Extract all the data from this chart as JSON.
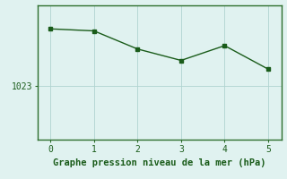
{
  "x": [
    0,
    1,
    2,
    3,
    4,
    5
  ],
  "y": [
    1031.5,
    1031.2,
    1028.5,
    1026.8,
    1029.0,
    1025.5
  ],
  "line_color": "#1a5c1a",
  "marker": "s",
  "marker_size": 2.5,
  "background_color": "#e0f2f0",
  "grid_color": "#b0d4d0",
  "xlabel": "Graphe pression niveau de la mer (hPa)",
  "xlabel_color": "#1a5c1a",
  "xlabel_fontsize": 7.5,
  "tick_color": "#1a5c1a",
  "tick_fontsize": 7,
  "ytick_values": [
    1023
  ],
  "xlim": [
    -0.3,
    5.3
  ],
  "ylim": [
    1015,
    1035
  ],
  "line_width": 1.0,
  "spine_color": "#2d6e2d"
}
